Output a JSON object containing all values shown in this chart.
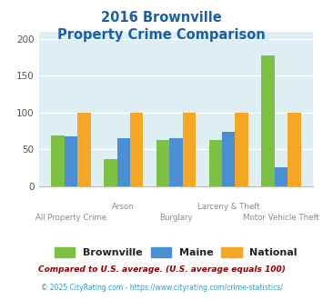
{
  "title_line1": "2016 Brownville",
  "title_line2": "Property Crime Comparison",
  "categories": [
    "All Property Crime",
    "Arson",
    "Burglary",
    "Larceny & Theft",
    "Motor Vehicle Theft"
  ],
  "brownville": [
    69,
    37,
    63,
    63,
    178
  ],
  "maine": [
    67,
    65,
    65,
    74,
    25
  ],
  "national": [
    100,
    100,
    100,
    100,
    100
  ],
  "bar_colors": {
    "brownville": "#7dc142",
    "maine": "#4a8fd4",
    "national": "#f5a623"
  },
  "ylim": [
    0,
    210
  ],
  "yticks": [
    0,
    50,
    100,
    150,
    200
  ],
  "legend_labels": [
    "Brownville",
    "Maine",
    "National"
  ],
  "footnote1": "Compared to U.S. average. (U.S. average equals 100)",
  "footnote2": "© 2025 CityRating.com - https://www.cityrating.com/crime-statistics/",
  "fig_bg_color": "#ffffff",
  "plot_bg_color": "#ddeef4",
  "title_color": "#1a5fa8",
  "footnote1_color": "#8b0000",
  "footnote2_color": "#3399cc",
  "xlabel_color": "#9b7fa0",
  "grid_color": "#ffffff",
  "upper_labels": [
    1,
    3
  ],
  "lower_labels": [
    0,
    2,
    4
  ]
}
